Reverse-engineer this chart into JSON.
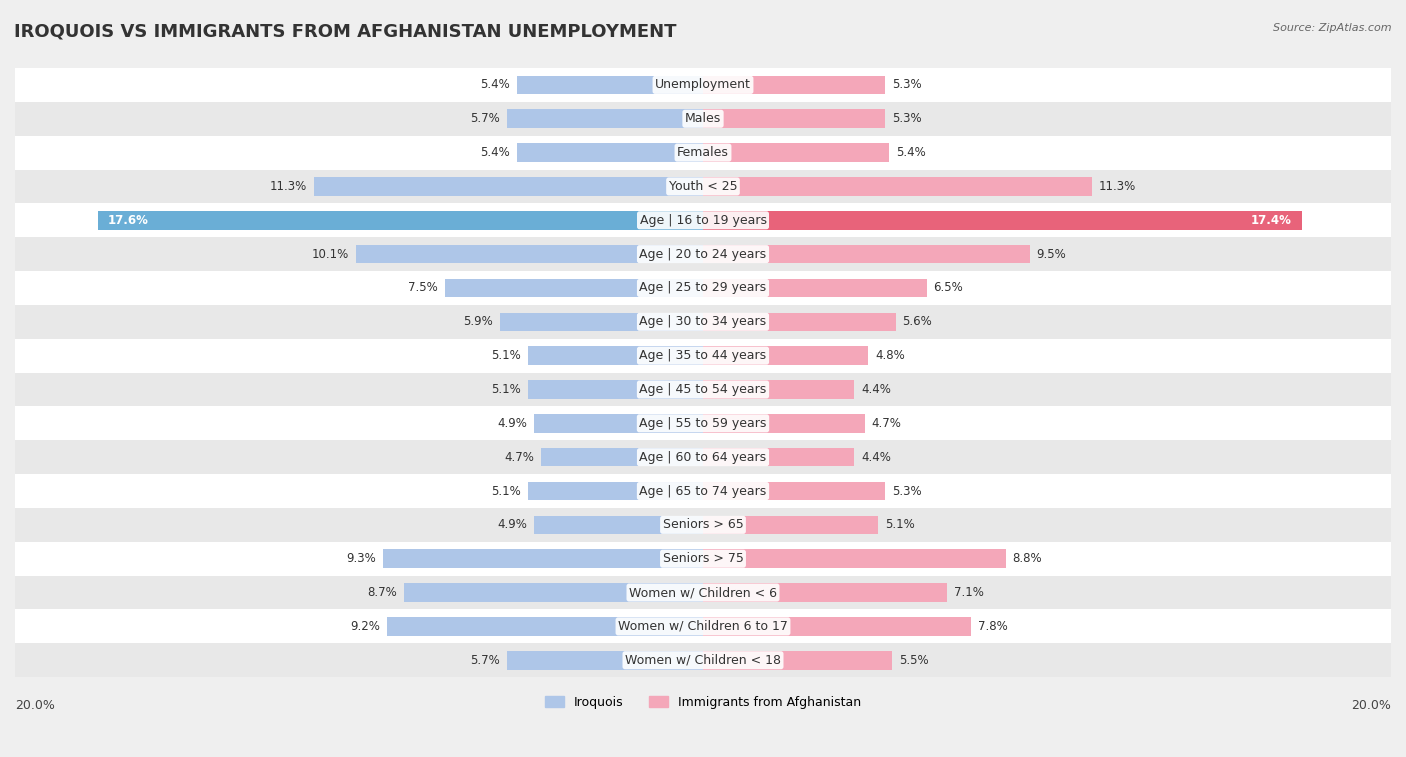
{
  "title": "IROQUOIS VS IMMIGRANTS FROM AFGHANISTAN UNEMPLOYMENT",
  "source": "Source: ZipAtlas.com",
  "categories": [
    "Unemployment",
    "Males",
    "Females",
    "Youth < 25",
    "Age | 16 to 19 years",
    "Age | 20 to 24 years",
    "Age | 25 to 29 years",
    "Age | 30 to 34 years",
    "Age | 35 to 44 years",
    "Age | 45 to 54 years",
    "Age | 55 to 59 years",
    "Age | 60 to 64 years",
    "Age | 65 to 74 years",
    "Seniors > 65",
    "Seniors > 75",
    "Women w/ Children < 6",
    "Women w/ Children 6 to 17",
    "Women w/ Children < 18"
  ],
  "iroquois": [
    5.4,
    5.7,
    5.4,
    11.3,
    17.6,
    10.1,
    7.5,
    5.9,
    5.1,
    5.1,
    4.9,
    4.7,
    5.1,
    4.9,
    9.3,
    8.7,
    9.2,
    5.7
  ],
  "afghanistan": [
    5.3,
    5.3,
    5.4,
    11.3,
    17.4,
    9.5,
    6.5,
    5.6,
    4.8,
    4.4,
    4.7,
    4.4,
    5.3,
    5.1,
    8.8,
    7.1,
    7.8,
    5.5
  ],
  "iroquois_color": "#aec6e8",
  "afghanistan_color": "#f4a7b9",
  "iroquois_highlight_color": "#6aaed6",
  "afghanistan_highlight_color": "#e8637a",
  "max_val": 20.0,
  "bar_height": 0.55,
  "bg_color": "#efefef",
  "row_bg_even": "#ffffff",
  "row_bg_odd": "#e8e8e8",
  "label_fontsize": 9,
  "value_fontsize": 8.5,
  "title_fontsize": 13
}
